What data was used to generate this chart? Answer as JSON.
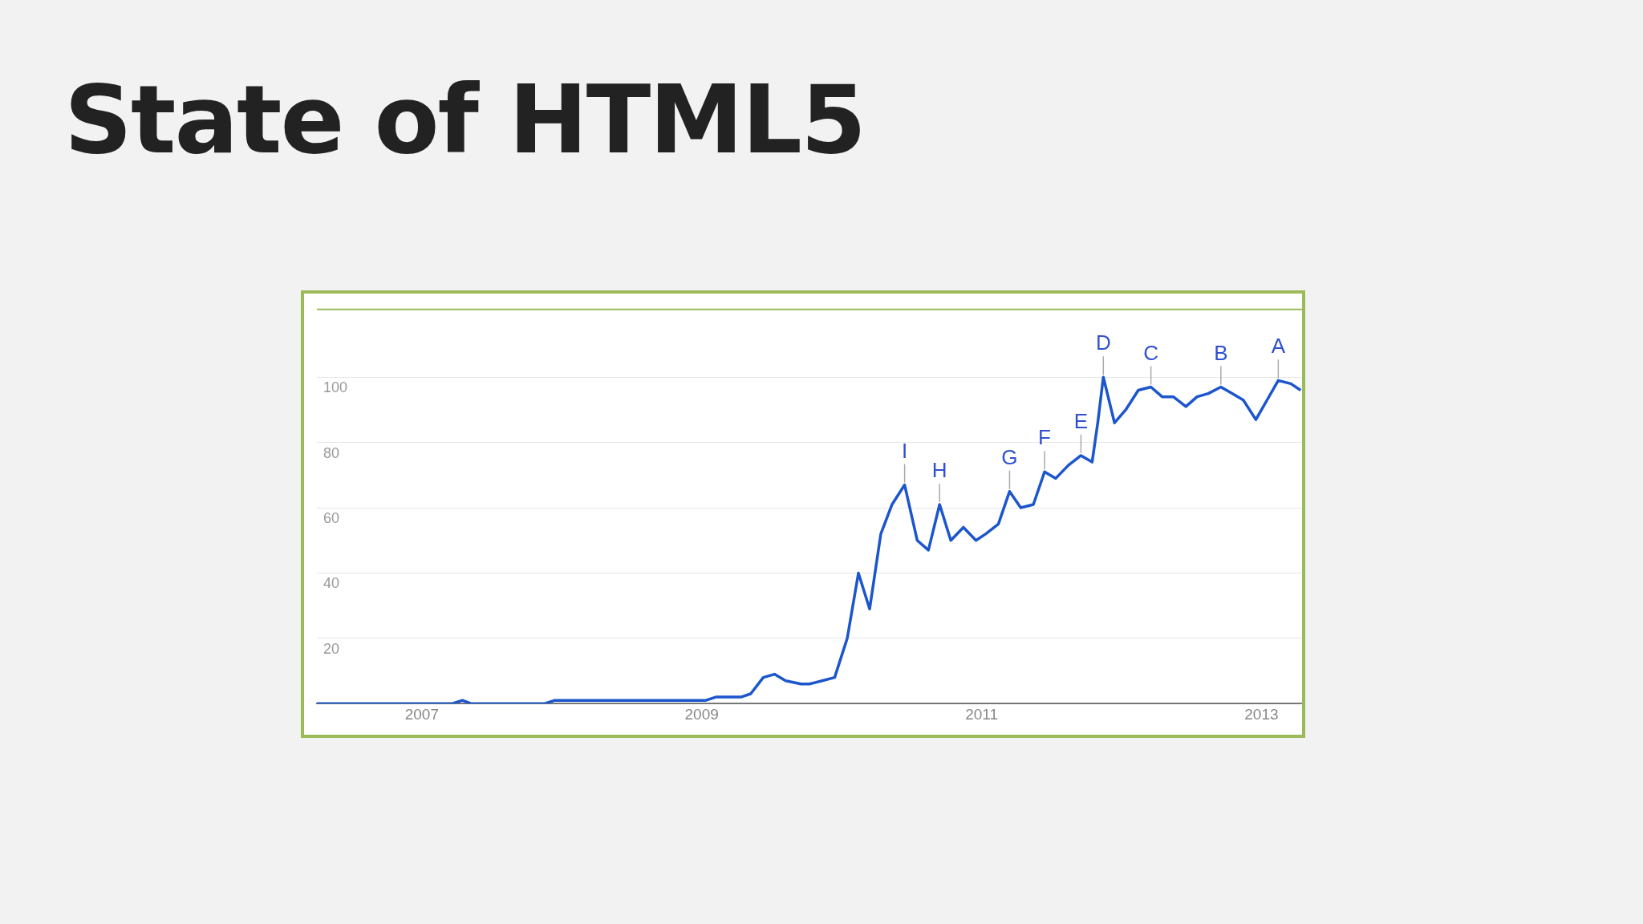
{
  "chart_data": {
    "type": "line",
    "title": "State of HTML5",
    "x": [
      2006.25,
      2007.22,
      2007.29,
      2007.35,
      2007.88,
      2007.95,
      2009.03,
      2009.1,
      2009.28,
      2009.35,
      2009.44,
      2009.52,
      2009.6,
      2009.71,
      2009.77,
      2009.86,
      2009.95,
      2010.04,
      2010.12,
      2010.2,
      2010.28,
      2010.36,
      2010.45,
      2010.54,
      2010.62,
      2010.7,
      2010.78,
      2010.87,
      2010.96,
      2011.03,
      2011.12,
      2011.2,
      2011.28,
      2011.37,
      2011.45,
      2011.53,
      2011.62,
      2011.71,
      2011.79,
      2011.83,
      2011.87,
      2011.95,
      2012.03,
      2012.12,
      2012.21,
      2012.29,
      2012.37,
      2012.46,
      2012.54,
      2012.62,
      2012.71,
      2012.79,
      2012.87,
      2012.96,
      2013.04,
      2013.12,
      2013.21,
      2013.28
    ],
    "series": [
      {
        "color": "#1c56cc",
        "values": [
          0,
          0,
          1,
          0,
          0,
          1,
          1,
          2,
          2,
          3,
          8,
          9,
          7,
          6,
          6,
          7,
          8,
          20,
          40,
          29,
          52,
          61,
          67,
          50,
          47,
          61,
          50,
          54,
          50,
          52,
          55,
          65,
          60,
          61,
          71,
          69,
          73,
          76,
          74,
          86,
          100,
          86,
          90,
          96,
          97,
          94,
          94,
          91,
          94,
          95,
          97,
          95,
          93,
          87,
          93,
          99,
          98,
          96
        ]
      }
    ],
    "xlim": [
      2006.25,
      2013.29
    ],
    "xticks": [
      2007,
      2009,
      2011,
      2013
    ],
    "ylim": [
      0,
      121
    ],
    "yticks": [
      {
        "value": 0,
        "label": null
      },
      20,
      40,
      60,
      80,
      100
    ],
    "grid": "y",
    "legend": false,
    "marker": "none",
    "line_style": "solid",
    "annotations": [
      {
        "text": "A",
        "x": 2013.12,
        "y": 99
      },
      {
        "text": "B",
        "x": 2012.71,
        "y": 97
      },
      {
        "text": "C",
        "x": 2012.21,
        "y": 97
      },
      {
        "text": "D",
        "x": 2011.87,
        "y": 100
      },
      {
        "text": "E",
        "x": 2011.71,
        "y": 76
      },
      {
        "text": "F",
        "x": 2011.45,
        "y": 71
      },
      {
        "text": "G",
        "x": 2011.2,
        "y": 65
      },
      {
        "text": "H",
        "x": 2010.7,
        "y": 61
      },
      {
        "text": "I",
        "x": 2010.45,
        "y": 67
      }
    ]
  }
}
